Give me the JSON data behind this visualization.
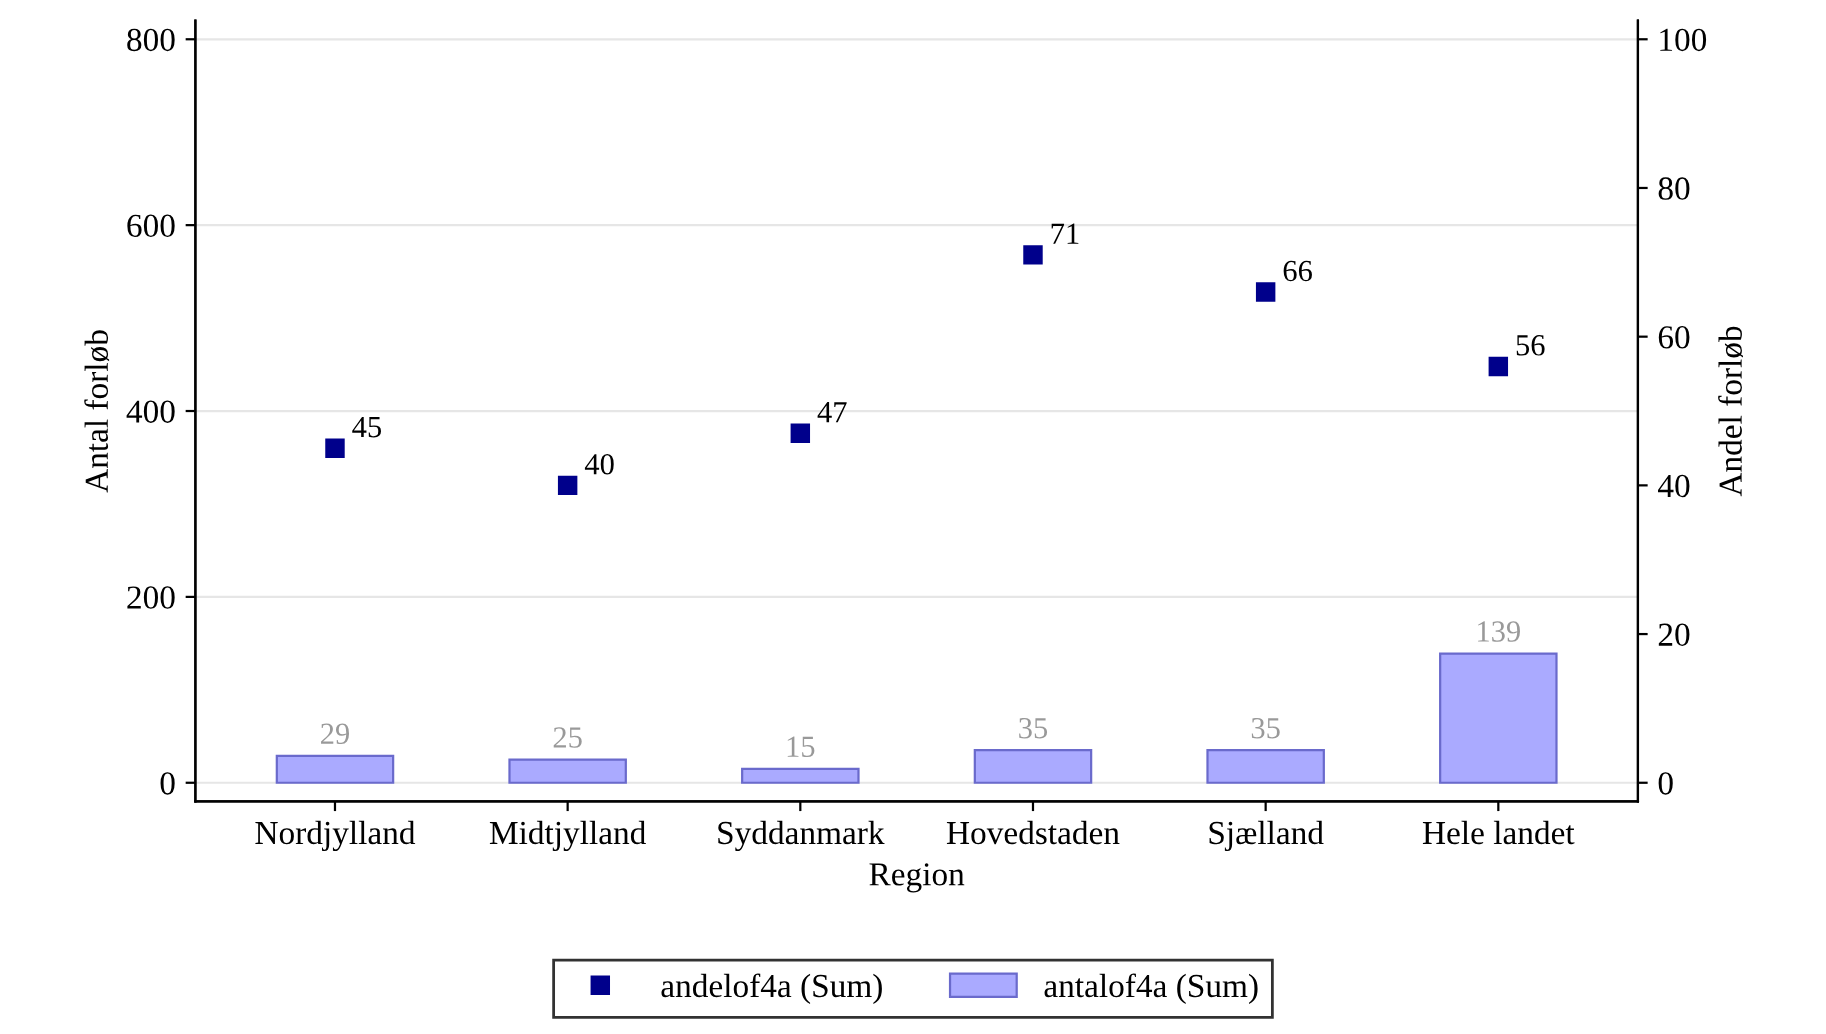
{
  "chart_data": {
    "type": "bar",
    "xlabel": "Region",
    "ylabel": "Antal forløb",
    "y2label": "Andel forløb",
    "categories": [
      "Nordjylland",
      "Midtjylland",
      "Syddanmark",
      "Hovedstaden",
      "Sjælland",
      "Hele landet"
    ],
    "series": [
      {
        "name": "andelof4a (Sum)",
        "type": "scatter",
        "axis": "y2",
        "color": "#00008b",
        "values": [
          45,
          40,
          47,
          71,
          66,
          56
        ]
      },
      {
        "name": "antalof4a (Sum)",
        "color": "#aaaaff",
        "values": [
          29,
          25,
          15,
          35,
          35,
          139
        ]
      }
    ],
    "ylim": [
      -20,
      820
    ],
    "yticks": [
      0,
      200,
      400,
      600,
      800
    ],
    "y2lim": [
      -2.5,
      102.5
    ],
    "y2ticks": [
      0,
      20,
      40,
      60,
      80,
      100
    ],
    "grid": "y",
    "legend": "bottom",
    "marker": "square",
    "data_labels": true
  }
}
